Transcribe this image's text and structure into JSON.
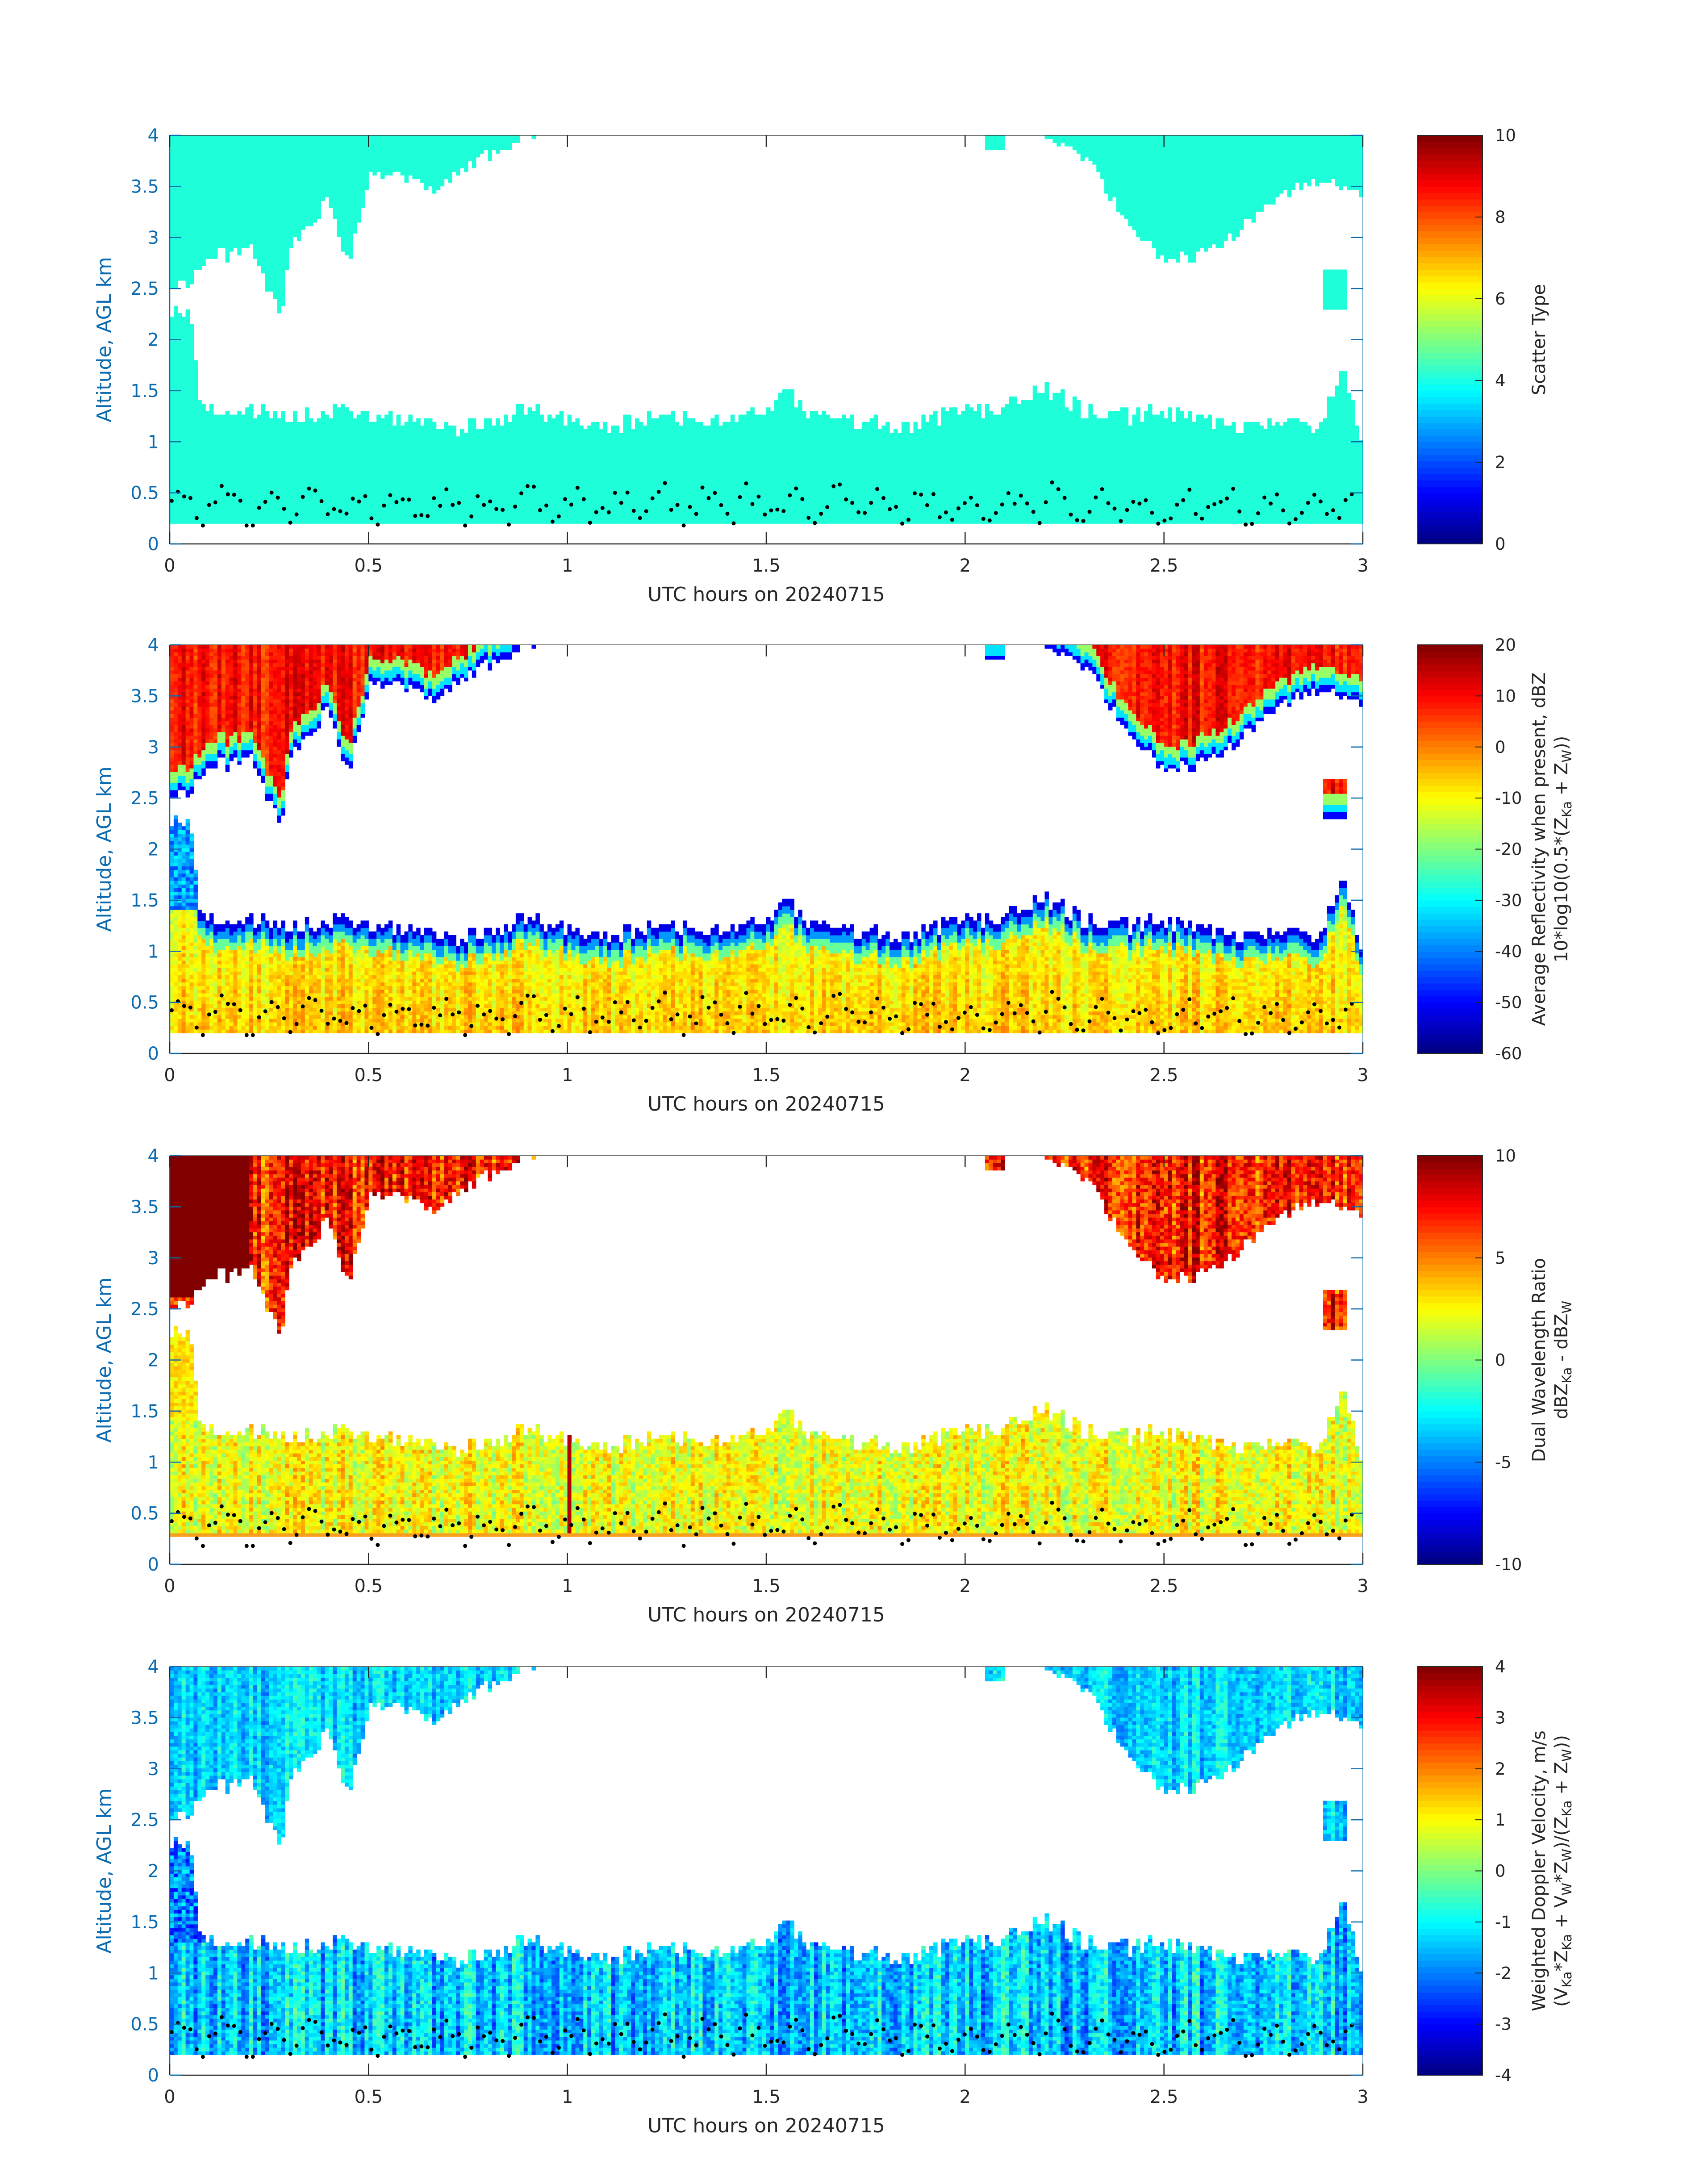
{
  "figure": {
    "date_label": "UTC hours on 20240715"
  },
  "chart_data": [
    {
      "type": "heatmap",
      "name": "scatter-type",
      "xlabel": "UTC hours on 20240715",
      "ylabel": "Altitude, AGL km",
      "xlim": [
        0,
        3
      ],
      "ylim": [
        0,
        4
      ],
      "xticks": [
        "0",
        "0.5",
        "1",
        "1.5",
        "2",
        "2.5",
        "3"
      ],
      "yticks": [
        "0",
        "0.5",
        "1",
        "1.5",
        "2",
        "2.5",
        "3",
        "3.5",
        "4"
      ],
      "colorbar": {
        "label_lines": [
          {
            "text": "Scatter Type"
          }
        ],
        "range": [
          0,
          10
        ],
        "ticks": [
          "0",
          "2",
          "4",
          "6",
          "8",
          "10"
        ]
      },
      "field": "scatter",
      "dominant_value": 3.5,
      "lowest_gate_km": 0.2,
      "dots_km": "cloud base markers 0.2–0.8 km"
    },
    {
      "type": "heatmap",
      "name": "average-reflectivity",
      "xlabel": "UTC hours on 20240715",
      "ylabel": "Altitude, AGL km",
      "xlim": [
        0,
        3
      ],
      "ylim": [
        0,
        4
      ],
      "xticks": [
        "0",
        "0.5",
        "1",
        "1.5",
        "2",
        "2.5",
        "3"
      ],
      "yticks": [
        "0",
        "0.5",
        "1",
        "1.5",
        "2",
        "2.5",
        "3",
        "3.5",
        "4"
      ],
      "colorbar": {
        "label_lines": [
          {
            "text": "Average Reflectivity when present, dBZ"
          },
          {
            "text": "10*log10(0.5*(Z",
            "sub1": "Ka",
            "mid": " + Z",
            "sub2": "W",
            "tail": "))"
          }
        ],
        "range": [
          -60,
          20
        ],
        "ticks": [
          "-60",
          "-50",
          "-40",
          "-30",
          "-20",
          "-10",
          "0",
          "10",
          "20"
        ]
      },
      "field": "reflectivity"
    },
    {
      "type": "heatmap",
      "name": "dual-wavelength-ratio",
      "xlabel": "UTC hours on 20240715",
      "ylabel": "Altitude, AGL km",
      "xlim": [
        0,
        3
      ],
      "ylim": [
        0,
        4
      ],
      "xticks": [
        "0",
        "0.5",
        "1",
        "1.5",
        "2",
        "2.5",
        "3"
      ],
      "yticks": [
        "0",
        "0.5",
        "1",
        "1.5",
        "2",
        "2.5",
        "3",
        "3.5",
        "4"
      ],
      "colorbar": {
        "label_lines": [
          {
            "text": "Dual Wavelength Ratio"
          },
          {
            "text": "dBZ",
            "sub1": "Ka",
            "mid": " - dBZ",
            "sub2": "W",
            "tail": ""
          }
        ],
        "range": [
          -10,
          10
        ],
        "ticks": [
          "-10",
          "-5",
          "0",
          "5",
          "10"
        ]
      },
      "field": "dwr"
    },
    {
      "type": "heatmap",
      "name": "weighted-doppler-velocity",
      "xlabel": "UTC hours on 20240715",
      "ylabel": "Altitude, AGL km",
      "xlim": [
        0,
        3
      ],
      "ylim": [
        0,
        4
      ],
      "xticks": [
        "0",
        "0.5",
        "1",
        "1.5",
        "2",
        "2.5",
        "3"
      ],
      "yticks": [
        "0",
        "0.5",
        "1",
        "1.5",
        "2",
        "2.5",
        "3",
        "3.5",
        "4"
      ],
      "colorbar": {
        "label_lines": [
          {
            "text": "Weighted Doppler Velocity, m/s"
          },
          {
            "text": "(V",
            "sub1": "Ka",
            "mid": "*Z",
            "sub2": "Ka",
            "tail": " + V",
            "sub3": "W",
            "tail2": "*Z",
            "sub4": "W",
            "tail3": ")/(Z",
            "sub5": "Ka",
            "tail4": " + Z",
            "sub6": "W",
            "tail5": "))"
          }
        ],
        "range": [
          -4,
          4
        ],
        "ticks": [
          "-4",
          "-3",
          "-2",
          "-1",
          "0",
          "1",
          "2",
          "3",
          "4"
        ]
      },
      "field": "velocity"
    }
  ],
  "cloud_geometry": {
    "low_layer_top_km": [
      [
        0,
        2.3
      ],
      [
        0.05,
        2.2
      ],
      [
        0.08,
        1.3
      ],
      [
        0.2,
        1.3
      ],
      [
        0.3,
        1.25
      ],
      [
        0.45,
        1.3
      ],
      [
        0.6,
        1.2
      ],
      [
        0.75,
        1.15
      ],
      [
        0.9,
        1.3
      ],
      [
        1.0,
        1.2
      ],
      [
        1.1,
        1.15
      ],
      [
        1.25,
        1.25
      ],
      [
        1.4,
        1.2
      ],
      [
        1.5,
        1.3
      ],
      [
        1.55,
        1.5
      ],
      [
        1.6,
        1.3
      ],
      [
        1.7,
        1.2
      ],
      [
        1.8,
        1.15
      ],
      [
        1.9,
        1.2
      ],
      [
        2.0,
        1.3
      ],
      [
        2.1,
        1.35
      ],
      [
        2.2,
        1.55
      ],
      [
        2.3,
        1.3
      ],
      [
        2.4,
        1.25
      ],
      [
        2.5,
        1.3
      ],
      [
        2.6,
        1.2
      ],
      [
        2.7,
        1.15
      ],
      [
        2.8,
        1.15
      ],
      [
        2.9,
        1.2
      ],
      [
        2.95,
        1.8
      ],
      [
        3.0,
        1.0
      ]
    ],
    "upper_cloud_left_base_km": [
      [
        0,
        2.5
      ],
      [
        0.05,
        2.6
      ],
      [
        0.1,
        2.8
      ],
      [
        0.2,
        2.9
      ],
      [
        0.28,
        2.2
      ],
      [
        0.3,
        2.9
      ],
      [
        0.35,
        3.1
      ],
      [
        0.4,
        3.4
      ],
      [
        0.45,
        2.7
      ],
      [
        0.5,
        3.6
      ],
      [
        0.6,
        3.6
      ],
      [
        0.65,
        3.45
      ],
      [
        0.7,
        3.6
      ],
      [
        0.8,
        3.8
      ],
      [
        0.9,
        4.0
      ]
    ],
    "upper_cloud_right_base_km": [
      [
        2.2,
        4.0
      ],
      [
        2.3,
        3.8
      ],
      [
        2.4,
        3.2
      ],
      [
        2.5,
        2.75
      ],
      [
        2.6,
        2.85
      ],
      [
        2.7,
        3.1
      ],
      [
        2.8,
        3.4
      ],
      [
        2.9,
        3.6
      ],
      [
        3.0,
        3.4
      ]
    ]
  }
}
